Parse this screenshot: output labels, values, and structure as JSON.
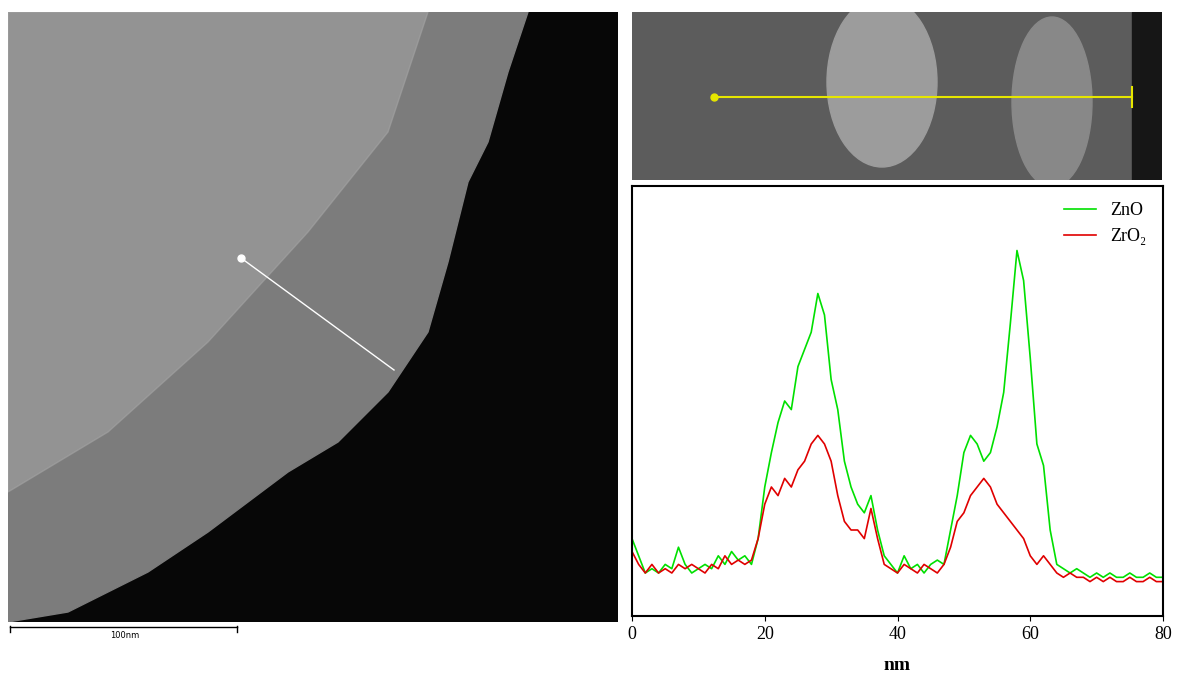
{
  "chart_data": {
    "type": "line",
    "xlabel": "nm",
    "x": [
      0,
      1,
      2,
      3,
      4,
      5,
      6,
      7,
      8,
      9,
      10,
      11,
      12,
      13,
      14,
      15,
      16,
      17,
      18,
      19,
      20,
      21,
      22,
      23,
      24,
      25,
      26,
      27,
      28,
      29,
      30,
      31,
      32,
      33,
      34,
      35,
      36,
      37,
      38,
      39,
      40,
      41,
      42,
      43,
      44,
      45,
      46,
      47,
      48,
      49,
      50,
      51,
      52,
      53,
      54,
      55,
      56,
      57,
      58,
      59,
      60,
      61,
      62,
      63,
      64,
      65,
      66,
      67,
      68,
      69,
      70,
      71,
      72,
      73,
      74,
      75,
      76,
      77,
      78,
      79,
      80
    ],
    "series": [
      {
        "name": "ZnO",
        "color": "#00e000",
        "values": [
          18,
          14,
          10,
          11,
          10,
          12,
          11,
          16,
          12,
          10,
          11,
          12,
          11,
          14,
          12,
          15,
          13,
          14,
          12,
          18,
          30,
          38,
          45,
          50,
          48,
          58,
          62,
          66,
          75,
          70,
          55,
          48,
          36,
          30,
          26,
          24,
          28,
          20,
          14,
          12,
          10,
          14,
          11,
          12,
          10,
          12,
          13,
          12,
          20,
          28,
          38,
          42,
          40,
          36,
          38,
          44,
          52,
          68,
          85,
          78,
          60,
          40,
          35,
          20,
          12,
          11,
          10,
          11,
          10,
          9,
          10,
          9,
          10,
          9,
          9,
          10,
          9,
          9,
          10,
          9,
          9
        ]
      },
      {
        "name": "ZrO₂",
        "color": "#e00000",
        "values": [
          15,
          12,
          10,
          12,
          10,
          11,
          10,
          12,
          11,
          12,
          11,
          10,
          12,
          11,
          14,
          12,
          13,
          12,
          13,
          18,
          26,
          30,
          28,
          32,
          30,
          34,
          36,
          40,
          42,
          40,
          36,
          28,
          22,
          20,
          20,
          18,
          25,
          18,
          12,
          11,
          10,
          12,
          11,
          10,
          12,
          11,
          10,
          12,
          16,
          22,
          24,
          28,
          30,
          32,
          30,
          26,
          24,
          22,
          20,
          18,
          14,
          12,
          14,
          12,
          10,
          9,
          10,
          9,
          9,
          8,
          9,
          8,
          9,
          8,
          8,
          9,
          8,
          8,
          9,
          8,
          8
        ]
      }
    ],
    "xlim": [
      0,
      80
    ],
    "xticks": [
      0,
      20,
      40,
      60,
      80
    ],
    "ylim": [
      0,
      100
    ],
    "yticks": [],
    "tick_labels": "x",
    "legend": "upper right",
    "grid": false
  },
  "micrograph": {
    "scale_bar": "100nm"
  }
}
